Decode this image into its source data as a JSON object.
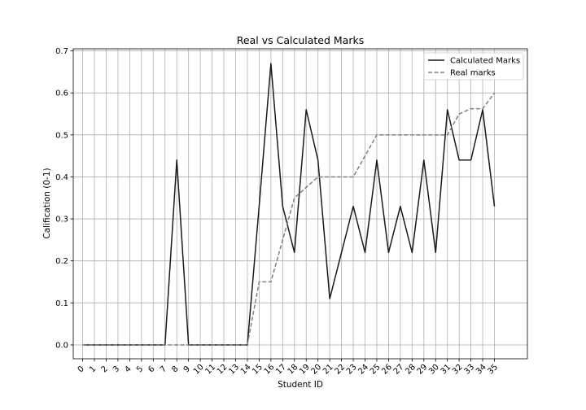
{
  "chart_data": {
    "type": "line",
    "title": "Real vs Calculated Marks",
    "xlabel": "Student ID",
    "ylabel": "Calification (0-1)",
    "x": [
      0,
      1,
      2,
      3,
      4,
      5,
      6,
      7,
      8,
      9,
      10,
      11,
      12,
      13,
      14,
      15,
      16,
      17,
      18,
      19,
      20,
      21,
      22,
      23,
      24,
      25,
      26,
      27,
      28,
      29,
      30,
      31,
      32,
      33,
      34,
      35
    ],
    "xlim": [
      -0.8,
      37.8
    ],
    "ylim": [
      -0.033,
      0.705
    ],
    "yticks": [
      0.0,
      0.1,
      0.2,
      0.3,
      0.4,
      0.5,
      0.6,
      0.7
    ],
    "ytick_labels": [
      "0.0",
      "0.1",
      "0.2",
      "0.3",
      "0.4",
      "0.5",
      "0.6",
      "0.7"
    ],
    "grid": true,
    "legend_position": "top-right",
    "series": [
      {
        "name": "Calculated Marks",
        "color": "#1a1a1a",
        "style": "solid",
        "values": [
          0,
          0,
          0,
          0,
          0,
          0,
          0,
          0,
          0.44,
          0,
          0,
          0,
          0,
          0,
          0,
          0.33,
          0.67,
          0.33,
          0.22,
          0.56,
          0.44,
          0.11,
          0.22,
          0.33,
          0.22,
          0.44,
          0.22,
          0.33,
          0.22,
          0.44,
          0.22,
          0.56,
          0.44,
          0.44,
          0.56,
          0.33
        ]
      },
      {
        "name": "Real marks",
        "color": "#808080",
        "style": "dashed",
        "values": [
          0,
          0,
          0,
          0,
          0,
          0,
          0,
          0,
          0,
          0,
          0,
          0,
          0,
          0,
          0,
          0.15,
          0.15,
          0.25,
          0.35,
          0.375,
          0.4,
          0.4,
          0.4,
          0.4,
          0.45,
          0.5,
          0.5,
          0.5,
          0.5,
          0.5,
          0.5,
          0.5,
          0.55,
          0.5625,
          0.5625,
          0.6
        ]
      }
    ]
  }
}
